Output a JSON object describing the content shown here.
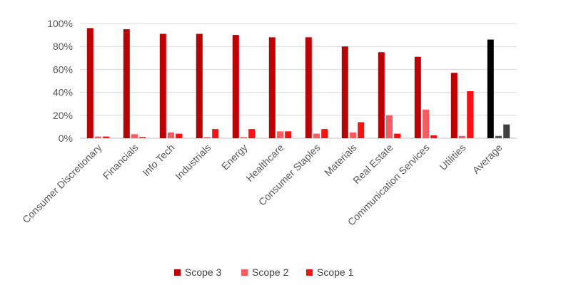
{
  "chart_data": {
    "type": "bar",
    "categories": [
      "Consumer Discretionary",
      "Financials",
      "Info Tech",
      "Industrials",
      "Energy",
      "Healthcare",
      "Consumer Staples",
      "Materials",
      "Real Estate",
      "Communication Services",
      "Utilities",
      "Average"
    ],
    "series": [
      {
        "name": "Scope 3",
        "values": [
          96,
          95,
          91,
          91,
          90,
          88,
          88,
          80,
          75,
          71,
          57,
          86
        ]
      },
      {
        "name": "Scope 2",
        "values": [
          1.5,
          3.5,
          5,
          1,
          1,
          6,
          4,
          5,
          20,
          25,
          2,
          2
        ]
      },
      {
        "name": "Scope 1",
        "values": [
          1.5,
          1,
          4,
          8,
          8,
          6,
          8,
          14,
          4,
          2.5,
          41,
          12
        ]
      }
    ],
    "yticks": [
      "0%",
      "20%",
      "40%",
      "60%",
      "80%",
      "100%"
    ],
    "ylim": [
      0,
      100
    ],
    "grid": true,
    "legend_position": "bottom",
    "colors": {
      "Scope 3": "#c00000",
      "Scope 2": "#ff5a5f",
      "Scope 1": "#ff1010",
      "average_scope3": "#000000",
      "average_scope2": "#595959",
      "average_scope1": "#3f3f3f"
    }
  }
}
